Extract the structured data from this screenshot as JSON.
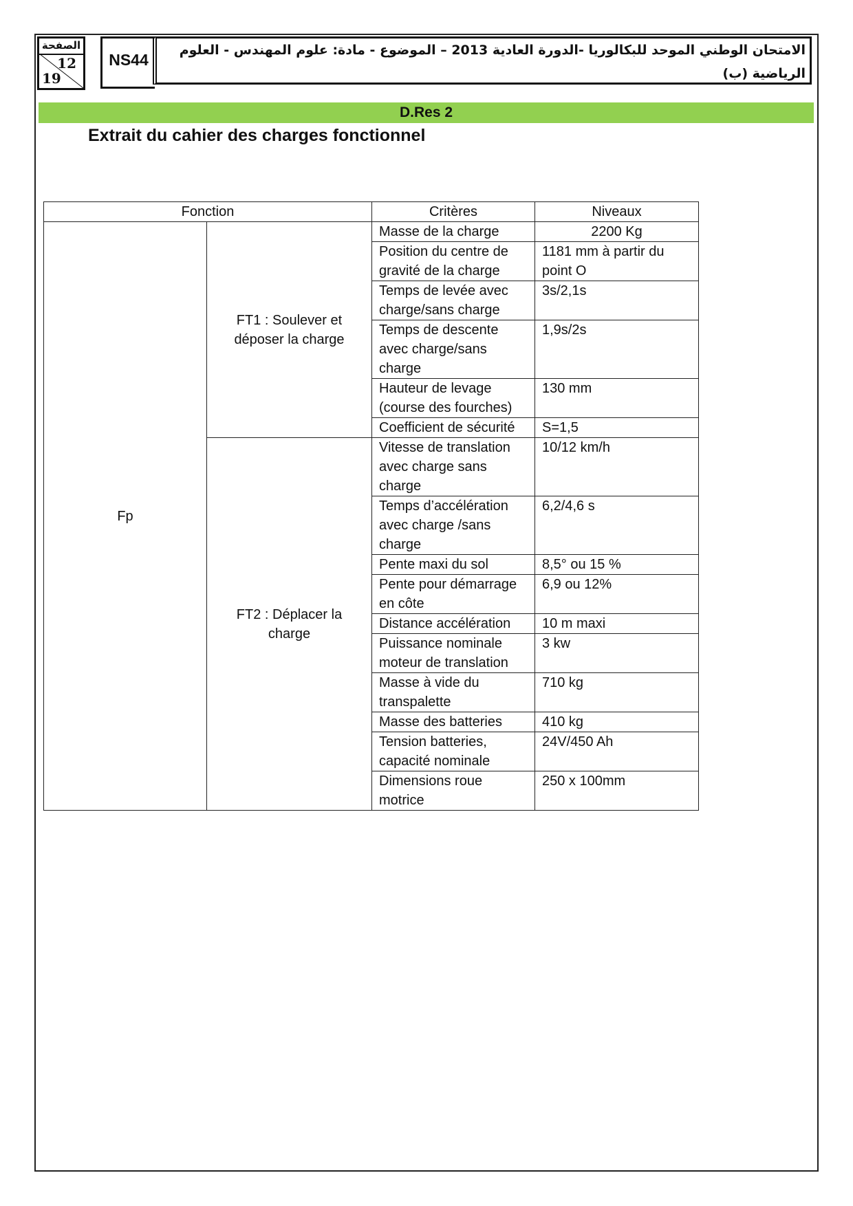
{
  "header": {
    "page_label": "الصفحة",
    "page": "12",
    "total": "19",
    "code": "NS44",
    "title": "الامتحان الوطني الموحد للبكالوريا -الدورة العادية 2013 – الموضوع - مادة: علوم المهندس - العلوم الرياضية (ب)"
  },
  "section": "D.Res 2",
  "heading": "Extrait du cahier des charges fonctionnel",
  "table": {
    "headers": [
      "Fonction",
      "Critères",
      "Niveaux"
    ],
    "fp": "Fp",
    "ft1": "FT1 : Soulever et déposer la charge",
    "ft2": "FT2 : Déplacer la charge",
    "rows": [
      {
        "c": "Masse de la charge",
        "n": "2200 Kg"
      },
      {
        "c": "Position du centre de gravité de la charge",
        "n": "1181 mm à partir du point O"
      },
      {
        "c": "Temps de levée avec charge/sans charge",
        "n": "3s/2,1s"
      },
      {
        "c": "Temps de descente avec charge/sans charge",
        "n": "1,9s/2s"
      },
      {
        "c": "Hauteur de levage (course des fourches)",
        "n": "130 mm"
      },
      {
        "c": "Coefficient de sécurité",
        "n": "S=1,5"
      },
      {
        "c": "Vitesse de translation avec charge sans charge",
        "n": "10/12 km/h"
      },
      {
        "c": "Temps d’accélération avec charge /sans charge",
        "n": "6,2/4,6 s"
      },
      {
        "c": "Pente maxi du sol",
        "n": "8,5° ou 15 %"
      },
      {
        "c": "Pente pour démarrage en côte",
        "n": "6,9 ou 12%"
      },
      {
        "c": "Distance accélération",
        "n": "10 m maxi"
      },
      {
        "c": "Puissance nominale moteur de translation",
        "n": "3 kw"
      },
      {
        "c": "Masse à vide du transpalette",
        "n": "710 kg"
      },
      {
        "c": "Masse des batteries",
        "n": "410 kg"
      },
      {
        "c": "Tension batteries, capacité nominale",
        "n": "24V/450 Ah"
      },
      {
        "c": "Dimensions roue motrice",
        "n": "250 x 100mm"
      }
    ]
  }
}
